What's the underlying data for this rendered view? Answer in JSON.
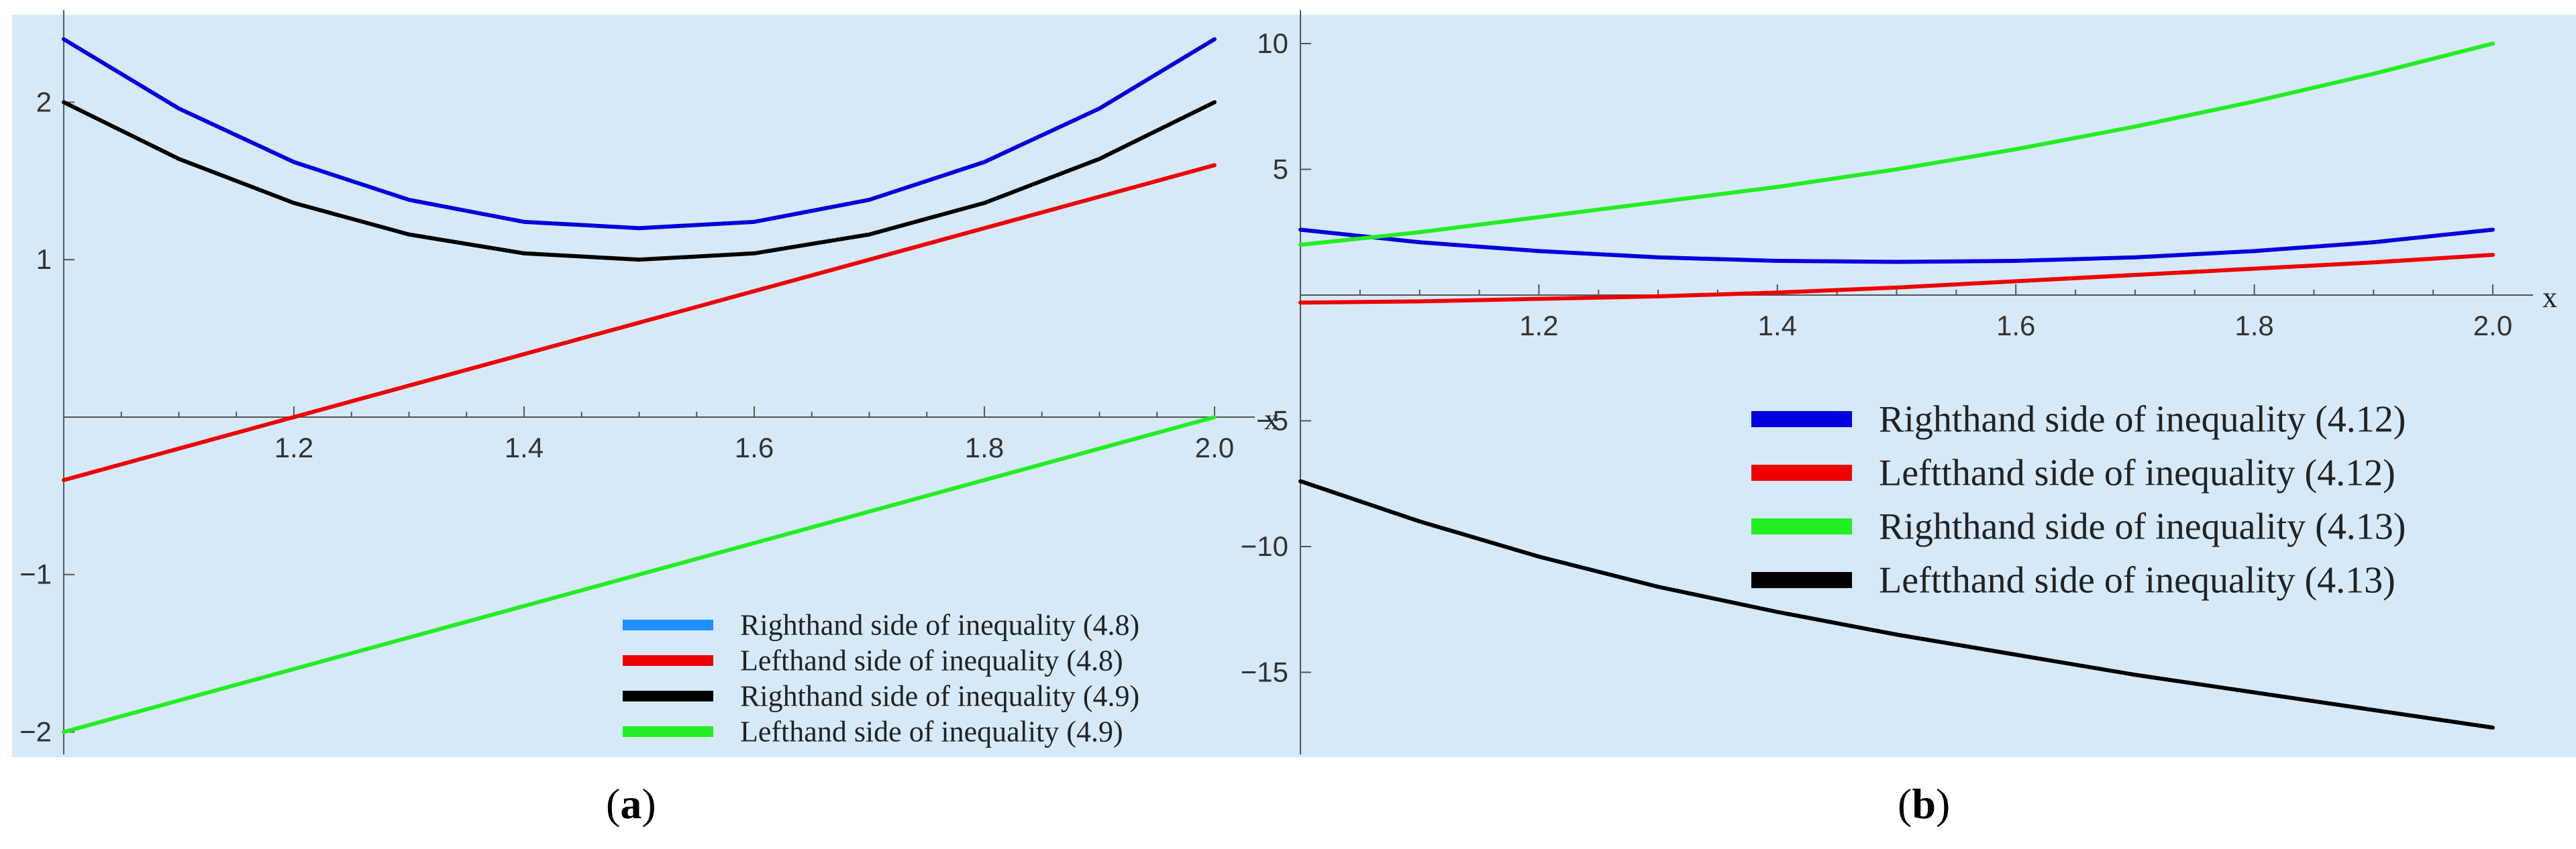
{
  "chart_data": [
    {
      "type": "line",
      "panel_label": "a",
      "xlabel": "x",
      "xlim": [
        1.0,
        2.0
      ],
      "ylim": [
        -2.1,
        2.5
      ],
      "xticks": [
        {
          "value": 1.2,
          "label": "1.2"
        },
        {
          "value": 1.4,
          "label": "1.4"
        },
        {
          "value": 1.6,
          "label": "1.6"
        },
        {
          "value": 1.8,
          "label": "1.8"
        },
        {
          "value": 2.0,
          "label": "2.0"
        }
      ],
      "yticks": [
        {
          "value": 2,
          "label": "2"
        },
        {
          "value": 1,
          "label": "1"
        },
        {
          "value": -1,
          "label": "−1"
        },
        {
          "value": -2,
          "label": "−2"
        }
      ],
      "series": [
        {
          "name": "Righthand  side of inequality (4.8)",
          "color": "#0000dd",
          "legend_color": "#1e90ff",
          "x": [
            1.0,
            1.1,
            1.2,
            1.3,
            1.4,
            1.5,
            1.6,
            1.7,
            1.8,
            1.9,
            2.0
          ],
          "y": [
            2.4,
            1.96,
            1.62,
            1.38,
            1.24,
            1.2,
            1.24,
            1.38,
            1.62,
            1.96,
            2.4
          ]
        },
        {
          "name": "Lefthand  side of inequality (4.8)",
          "color": "#ee0000",
          "legend_color": "#ee0000",
          "x": [
            1.0,
            2.0
          ],
          "y": [
            -0.4,
            1.6
          ]
        },
        {
          "name": "Righthand  side of inequality (4.9)",
          "color": "#000000",
          "legend_color": "#000000",
          "x": [
            1.0,
            1.1,
            1.2,
            1.3,
            1.4,
            1.5,
            1.6,
            1.7,
            1.8,
            1.9,
            2.0
          ],
          "y": [
            2.0,
            1.64,
            1.36,
            1.16,
            1.04,
            1.0,
            1.04,
            1.16,
            1.36,
            1.64,
            2.0
          ]
        },
        {
          "name": "Lefthand  side of inequality (4.9)",
          "color": "#22ee22",
          "legend_color": "#22ee22",
          "x": [
            1.0,
            2.0
          ],
          "y": [
            -2.0,
            0.0
          ]
        }
      ]
    },
    {
      "type": "line",
      "panel_label": "b",
      "xlabel": "x",
      "xlim": [
        1.0,
        2.0
      ],
      "ylim": [
        -18.0,
        10.8
      ],
      "xticks": [
        {
          "value": 1.2,
          "label": "1.2"
        },
        {
          "value": 1.4,
          "label": "1.4"
        },
        {
          "value": 1.6,
          "label": "1.6"
        },
        {
          "value": 1.8,
          "label": "1.8"
        },
        {
          "value": 2.0,
          "label": "2.0"
        }
      ],
      "yticks": [
        {
          "value": 10,
          "label": "10"
        },
        {
          "value": 5,
          "label": "5"
        },
        {
          "value": -5,
          "label": "−5"
        },
        {
          "value": -10,
          "label": "−10"
        },
        {
          "value": -15,
          "label": "−15"
        }
      ],
      "series": [
        {
          "name": "Righthand  side of inequality (4.12)",
          "color": "#0000dd",
          "legend_color": "#0000dd",
          "x": [
            1.0,
            1.1,
            1.2,
            1.3,
            1.4,
            1.5,
            1.6,
            1.7,
            1.8,
            1.9,
            2.0
          ],
          "y": [
            2.6,
            2.1,
            1.75,
            1.5,
            1.36,
            1.32,
            1.36,
            1.5,
            1.75,
            2.1,
            2.6
          ]
        },
        {
          "name": "Leftthand  side of inequality (4.12)",
          "color": "#ee0000",
          "legend_color": "#ee0000",
          "x": [
            1.0,
            1.1,
            1.2,
            1.3,
            1.4,
            1.5,
            1.6,
            1.7,
            1.8,
            1.9,
            2.0
          ],
          "y": [
            -0.3,
            -0.25,
            -0.15,
            -0.05,
            0.1,
            0.3,
            0.55,
            0.8,
            1.05,
            1.3,
            1.6
          ]
        },
        {
          "name": "Righthand  side of inequality (4.13)",
          "color": "#22ee22",
          "legend_color": "#22ee22",
          "x": [
            1.0,
            1.1,
            1.2,
            1.3,
            1.4,
            1.5,
            1.6,
            1.7,
            1.8,
            1.9,
            2.0
          ],
          "y": [
            2.0,
            2.5,
            3.1,
            3.7,
            4.3,
            5.0,
            5.8,
            6.7,
            7.7,
            8.8,
            10.0
          ]
        },
        {
          "name": "Leftthand  side of inequality (4.13)",
          "color": "#000000",
          "legend_color": "#000000",
          "x": [
            1.0,
            1.1,
            1.2,
            1.3,
            1.4,
            1.5,
            1.6,
            1.7,
            1.8,
            1.9,
            2.0
          ],
          "y": [
            -7.4,
            -9.0,
            -10.4,
            -11.6,
            -12.6,
            -13.5,
            -14.3,
            -15.1,
            -15.8,
            -16.5,
            -17.2
          ]
        }
      ]
    }
  ]
}
